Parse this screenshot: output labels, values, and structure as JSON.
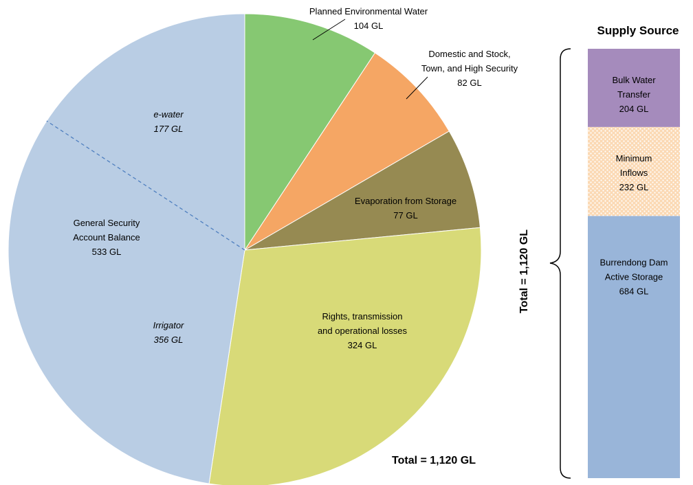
{
  "chart_data": [
    {
      "type": "pie",
      "slices": [
        {
          "name": "Planned Environmental Water",
          "value": 104,
          "label": "104 GL",
          "color": "#86c872"
        },
        {
          "name": "Domestic and Stock, Town, and High Security",
          "value": 82,
          "label": "82 GL",
          "color": "#f5a664"
        },
        {
          "name": "Evaporation from Storage",
          "value": 77,
          "label": "77 GL",
          "color": "#968a52"
        },
        {
          "name": "Rights, transmission and operational losses",
          "value": 324,
          "label": "324 GL",
          "color": "#d8da78"
        },
        {
          "name": "General Security Account Balance",
          "value": 533,
          "label": "533 GL",
          "color": "#b9cde4",
          "sub": [
            {
              "name": "Irrigator",
              "value": 356,
              "label": "356 GL"
            },
            {
              "name": "e-water",
              "value": 177,
              "label": "177 GL"
            }
          ]
        }
      ],
      "total_label": "Total = 1,120 GL"
    },
    {
      "type": "bar",
      "title": "Supply Source",
      "stacked": true,
      "segments": [
        {
          "name": "Burrendong Dam Active Storage",
          "value": 684,
          "label": "684 GL",
          "color": "#99b5d9"
        },
        {
          "name": "Minimum Inflows",
          "value": 232,
          "label": "232 GL",
          "color": "#fbd9b4"
        },
        {
          "name": "Bulk Water Transfer",
          "value": 204,
          "label": "204 GL",
          "color": "#a58bbc"
        }
      ],
      "total_label": "Total = 1,120 GL"
    }
  ],
  "labels": {
    "pew": [
      "Planned Environmental Water",
      "104 GL"
    ],
    "dst": [
      "Domestic and Stock,",
      "Town, and High Security",
      "82 GL"
    ],
    "evap": [
      "Evaporation from Storage",
      "77 GL"
    ],
    "rights": [
      "Rights, transmission",
      "and operational losses",
      "324 GL"
    ],
    "gs": [
      "General Security",
      "Account Balance",
      "533 GL"
    ],
    "ewater": [
      "e-water",
      "177 GL"
    ],
    "irrigator": [
      "Irrigator",
      "356 GL"
    ],
    "bulk": [
      "Bulk Water",
      "Transfer",
      "204 GL"
    ],
    "minimum": [
      "Minimum",
      "Inflows",
      "232 GL"
    ],
    "burrendong": [
      "Burrendong Dam",
      "Active Storage",
      "684 GL"
    ]
  }
}
